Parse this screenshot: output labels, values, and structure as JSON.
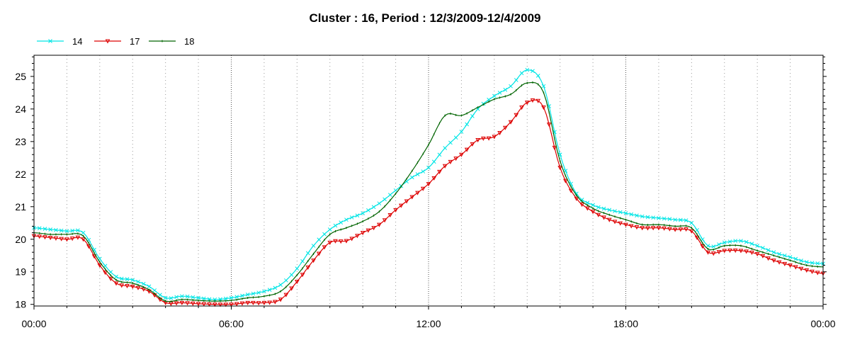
{
  "chart_data": {
    "type": "line",
    "title": "Cluster : 16, Period : 12/3/2009-12/4/2009",
    "xlabel": "",
    "ylabel": "",
    "x_ticks": [
      "00:00",
      "06:00",
      "12:00",
      "18:00",
      "00:00"
    ],
    "xlim_hours": [
      0,
      24
    ],
    "y_ticks": [
      "18",
      "19",
      "20",
      "21",
      "22",
      "23",
      "24",
      "25"
    ],
    "ylim": [
      17.95,
      25.65
    ],
    "grid": "vertical dotted",
    "legend_position": "top-left",
    "x_hours": [
      0,
      0.5,
      1,
      1.5,
      2,
      2.5,
      3,
      3.5,
      4,
      4.5,
      5,
      5.5,
      6,
      6.5,
      7,
      7.5,
      8,
      8.5,
      9,
      9.5,
      10,
      10.5,
      11,
      11.5,
      12,
      12.5,
      13,
      13.5,
      14,
      14.5,
      15,
      15.5,
      16,
      16.5,
      17,
      17.5,
      18,
      18.5,
      19,
      19.5,
      20,
      20.5,
      21,
      21.5,
      22,
      22.5,
      23,
      23.5,
      24
    ],
    "series": [
      {
        "name": "14",
        "color": "#00e5e5",
        "marker": "x",
        "values": [
          20.35,
          20.3,
          20.25,
          20.2,
          19.4,
          18.85,
          18.75,
          18.55,
          18.2,
          18.25,
          18.2,
          18.15,
          18.2,
          18.3,
          18.4,
          18.6,
          19.1,
          19.8,
          20.3,
          20.6,
          20.8,
          21.1,
          21.5,
          21.9,
          22.2,
          22.8,
          23.3,
          24.0,
          24.4,
          24.7,
          25.2,
          24.7,
          22.6,
          21.4,
          21.05,
          20.9,
          20.8,
          20.7,
          20.65,
          20.6,
          20.5,
          19.8,
          19.9,
          19.95,
          19.8,
          19.6,
          19.45,
          19.3,
          19.25
        ]
      },
      {
        "name": "17",
        "color": "#dd0000",
        "marker": "triangle-down",
        "values": [
          20.1,
          20.05,
          20.0,
          20.0,
          19.2,
          18.65,
          18.55,
          18.4,
          18.05,
          18.05,
          18.02,
          18.0,
          18.0,
          18.05,
          18.05,
          18.15,
          18.7,
          19.35,
          19.9,
          19.95,
          20.2,
          20.45,
          20.9,
          21.3,
          21.7,
          22.25,
          22.6,
          23.05,
          23.15,
          23.6,
          24.2,
          24.05,
          22.2,
          21.25,
          20.85,
          20.6,
          20.45,
          20.35,
          20.35,
          20.3,
          20.25,
          19.6,
          19.65,
          19.65,
          19.55,
          19.35,
          19.2,
          19.05,
          18.95
        ]
      },
      {
        "name": "18",
        "color": "#006400",
        "marker": "none",
        "values": [
          20.2,
          20.15,
          20.15,
          20.1,
          19.3,
          18.75,
          18.65,
          18.45,
          18.1,
          18.15,
          18.12,
          18.1,
          18.12,
          18.2,
          18.25,
          18.4,
          18.9,
          19.55,
          20.15,
          20.35,
          20.55,
          20.85,
          21.4,
          22.1,
          22.9,
          23.8,
          23.8,
          24.05,
          24.3,
          24.45,
          24.8,
          24.5,
          22.4,
          21.35,
          20.95,
          20.75,
          20.6,
          20.45,
          20.45,
          20.4,
          20.35,
          19.7,
          19.8,
          19.8,
          19.65,
          19.5,
          19.35,
          19.2,
          19.15
        ]
      }
    ]
  }
}
